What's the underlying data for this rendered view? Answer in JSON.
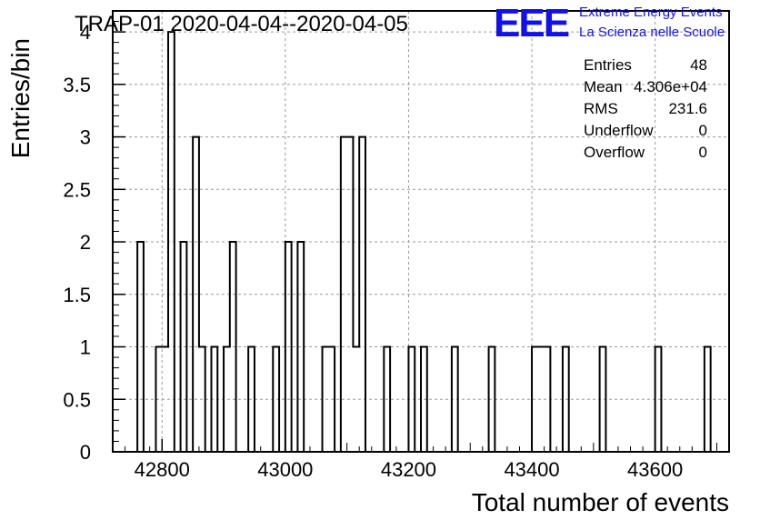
{
  "chart_data": {
    "type": "histogram",
    "title": "TRAP-01 2020-04-04--2020-04-05",
    "xlabel": "Total number of events",
    "ylabel": "Entries/bin",
    "xlim": [
      42720,
      43720
    ],
    "ylim": [
      0,
      4.2
    ],
    "bin_width": 10,
    "x_ticks": [
      42800,
      43000,
      43200,
      43400,
      43600
    ],
    "x_tick_labels": [
      "42800",
      "43000",
      "43200",
      "43400",
      "43600"
    ],
    "y_ticks": [
      0,
      0.5,
      1,
      1.5,
      2,
      2.5,
      3,
      3.5,
      4
    ],
    "y_tick_labels": [
      "0",
      "0.5",
      "1",
      "1.5",
      "2",
      "2.5",
      "3",
      "3.5",
      "4"
    ],
    "grid": true,
    "bins": [
      {
        "x": 42760,
        "count": 2
      },
      {
        "x": 42790,
        "count": 1
      },
      {
        "x": 42800,
        "count": 1
      },
      {
        "x": 42810,
        "count": 4
      },
      {
        "x": 42830,
        "count": 2
      },
      {
        "x": 42850,
        "count": 3
      },
      {
        "x": 42860,
        "count": 1
      },
      {
        "x": 42880,
        "count": 1
      },
      {
        "x": 42900,
        "count": 1
      },
      {
        "x": 42910,
        "count": 2
      },
      {
        "x": 42940,
        "count": 1
      },
      {
        "x": 42980,
        "count": 1
      },
      {
        "x": 43000,
        "count": 2
      },
      {
        "x": 43020,
        "count": 2
      },
      {
        "x": 43060,
        "count": 1
      },
      {
        "x": 43070,
        "count": 1
      },
      {
        "x": 43090,
        "count": 3
      },
      {
        "x": 43100,
        "count": 3
      },
      {
        "x": 43110,
        "count": 1
      },
      {
        "x": 43120,
        "count": 3
      },
      {
        "x": 43160,
        "count": 1
      },
      {
        "x": 43200,
        "count": 1
      },
      {
        "x": 43220,
        "count": 1
      },
      {
        "x": 43270,
        "count": 1
      },
      {
        "x": 43330,
        "count": 1
      },
      {
        "x": 43400,
        "count": 1
      },
      {
        "x": 43410,
        "count": 1
      },
      {
        "x": 43420,
        "count": 1
      },
      {
        "x": 43450,
        "count": 1
      },
      {
        "x": 43510,
        "count": 1
      },
      {
        "x": 43600,
        "count": 1
      },
      {
        "x": 43680,
        "count": 1
      }
    ],
    "stats": [
      {
        "label": "Entries",
        "value": "48"
      },
      {
        "label": "Mean",
        "value": "4.306e+04"
      },
      {
        "label": "RMS",
        "value": "231.6"
      },
      {
        "label": "Underflow",
        "value": "0"
      },
      {
        "label": "Overflow",
        "value": "0"
      }
    ]
  },
  "logo": {
    "letters": "EEE",
    "line1": "Extreme Energy Events",
    "line2": "La Scienza nelle Scuole",
    "color": "#1111ee"
  },
  "colors": {
    "line": "#000000",
    "grid": "#9a9a9a",
    "background": "#ffffff"
  }
}
